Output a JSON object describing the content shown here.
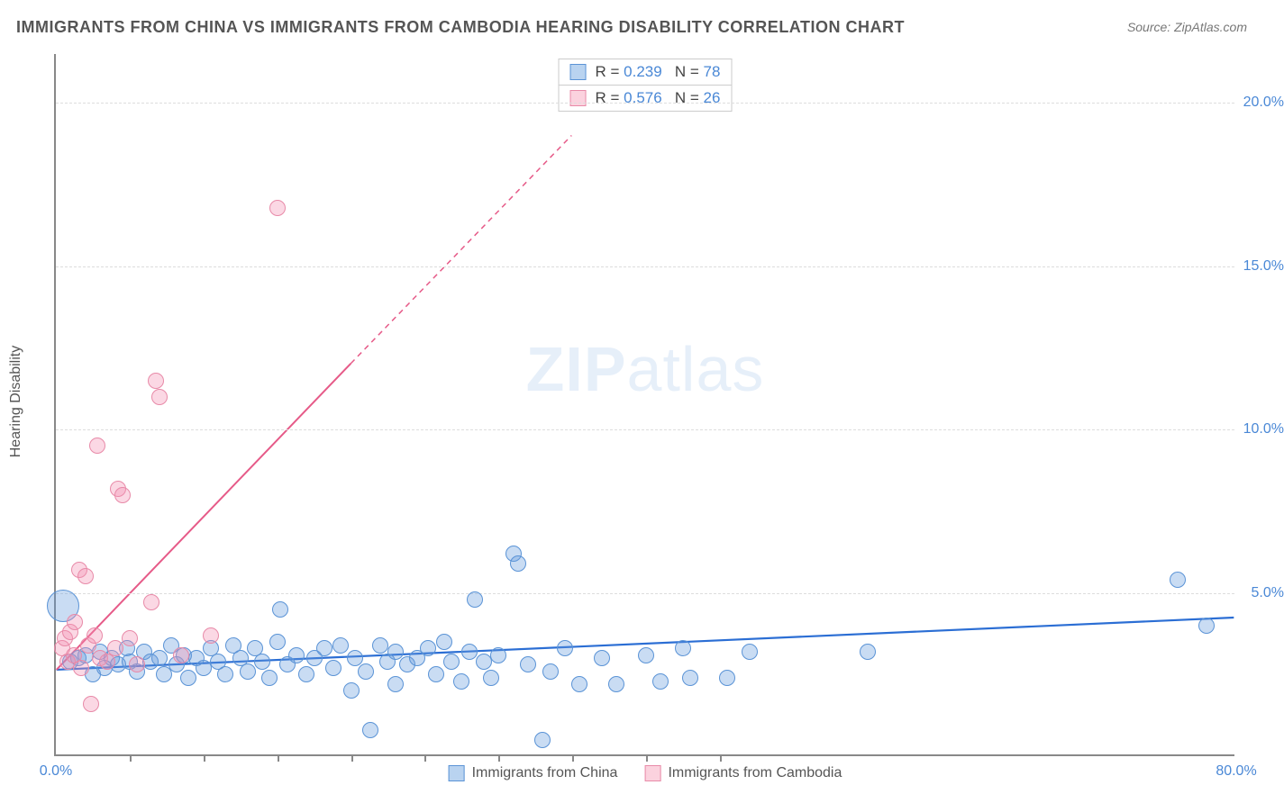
{
  "title": "IMMIGRANTS FROM CHINA VS IMMIGRANTS FROM CAMBODIA HEARING DISABILITY CORRELATION CHART",
  "source": "Source: ZipAtlas.com",
  "ylabel": "Hearing Disability",
  "watermark": {
    "bold": "ZIP",
    "rest": "atlas"
  },
  "chart": {
    "type": "scatter",
    "xlim": [
      0,
      80
    ],
    "ylim": [
      0,
      21.5
    ],
    "background_color": "#ffffff",
    "grid_color": "#dddddd",
    "axis_color": "#888888",
    "label_color": "#4a88d6",
    "yticks": [
      {
        "v": 5.0,
        "label": "5.0%"
      },
      {
        "v": 10.0,
        "label": "10.0%"
      },
      {
        "v": 15.0,
        "label": "15.0%"
      },
      {
        "v": 20.0,
        "label": "20.0%"
      }
    ],
    "xticks_minor": [
      5,
      10,
      15,
      20,
      25,
      30,
      35,
      40,
      45
    ],
    "xticks": [
      {
        "v": 0,
        "label": "0.0%"
      },
      {
        "v": 80,
        "label": "80.0%"
      }
    ],
    "series": [
      {
        "name": "Immigrants from China",
        "color_fill": "rgba(99,156,222,0.35)",
        "color_stroke": "#5a93d6",
        "color_swatch_fill": "#b9d3f0",
        "marker_radius": 9,
        "stats": {
          "R": "0.239",
          "N": "78"
        },
        "trend": {
          "x1": 0,
          "y1": 2.6,
          "x2": 80,
          "y2": 4.2,
          "color": "#2b6ed4",
          "width": 2.2,
          "dash": ""
        },
        "points": [
          {
            "x": 0.5,
            "y": 4.6,
            "r": 18
          },
          {
            "x": 1.0,
            "y": 2.9
          },
          {
            "x": 1.5,
            "y": 3.0
          },
          {
            "x": 2.0,
            "y": 3.1
          },
          {
            "x": 2.5,
            "y": 2.5
          },
          {
            "x": 3.0,
            "y": 3.2
          },
          {
            "x": 3.3,
            "y": 2.7
          },
          {
            "x": 3.8,
            "y": 3.0
          },
          {
            "x": 4.2,
            "y": 2.8
          },
          {
            "x": 4.8,
            "y": 3.3
          },
          {
            "x": 5.0,
            "y": 2.9
          },
          {
            "x": 5.5,
            "y": 2.6
          },
          {
            "x": 6.0,
            "y": 3.2
          },
          {
            "x": 6.4,
            "y": 2.9
          },
          {
            "x": 7.0,
            "y": 3.0
          },
          {
            "x": 7.3,
            "y": 2.5
          },
          {
            "x": 7.8,
            "y": 3.4
          },
          {
            "x": 8.2,
            "y": 2.8
          },
          {
            "x": 8.7,
            "y": 3.1
          },
          {
            "x": 9.0,
            "y": 2.4
          },
          {
            "x": 9.5,
            "y": 3.0
          },
          {
            "x": 10.0,
            "y": 2.7
          },
          {
            "x": 10.5,
            "y": 3.3
          },
          {
            "x": 11.0,
            "y": 2.9
          },
          {
            "x": 11.5,
            "y": 2.5
          },
          {
            "x": 12.0,
            "y": 3.4
          },
          {
            "x": 12.5,
            "y": 3.0
          },
          {
            "x": 13.0,
            "y": 2.6
          },
          {
            "x": 13.5,
            "y": 3.3
          },
          {
            "x": 14.0,
            "y": 2.9
          },
          {
            "x": 14.5,
            "y": 2.4
          },
          {
            "x": 15.0,
            "y": 3.5
          },
          {
            "x": 15.2,
            "y": 4.5
          },
          {
            "x": 15.7,
            "y": 2.8
          },
          {
            "x": 16.3,
            "y": 3.1
          },
          {
            "x": 17.0,
            "y": 2.5
          },
          {
            "x": 17.5,
            "y": 3.0
          },
          {
            "x": 18.2,
            "y": 3.3
          },
          {
            "x": 18.8,
            "y": 2.7
          },
          {
            "x": 19.3,
            "y": 3.4
          },
          {
            "x": 20.0,
            "y": 2.0
          },
          {
            "x": 20.3,
            "y": 3.0
          },
          {
            "x": 21.0,
            "y": 2.6
          },
          {
            "x": 21.3,
            "y": 0.8
          },
          {
            "x": 22.0,
            "y": 3.4
          },
          {
            "x": 22.5,
            "y": 2.9
          },
          {
            "x": 23.0,
            "y": 2.2
          },
          {
            "x": 23.0,
            "y": 3.2
          },
          {
            "x": 23.8,
            "y": 2.8
          },
          {
            "x": 24.5,
            "y": 3.0
          },
          {
            "x": 25.2,
            "y": 3.3
          },
          {
            "x": 25.8,
            "y": 2.5
          },
          {
            "x": 26.3,
            "y": 3.5
          },
          {
            "x": 26.8,
            "y": 2.9
          },
          {
            "x": 27.5,
            "y": 2.3
          },
          {
            "x": 28.0,
            "y": 3.2
          },
          {
            "x": 28.4,
            "y": 4.8
          },
          {
            "x": 29.0,
            "y": 2.9
          },
          {
            "x": 29.5,
            "y": 2.4
          },
          {
            "x": 30.0,
            "y": 3.1
          },
          {
            "x": 31.0,
            "y": 6.2
          },
          {
            "x": 31.3,
            "y": 5.9
          },
          {
            "x": 32.0,
            "y": 2.8
          },
          {
            "x": 33.0,
            "y": 0.5
          },
          {
            "x": 33.5,
            "y": 2.6
          },
          {
            "x": 34.5,
            "y": 3.3
          },
          {
            "x": 35.5,
            "y": 2.2
          },
          {
            "x": 37.0,
            "y": 3.0
          },
          {
            "x": 38.0,
            "y": 2.2
          },
          {
            "x": 40.0,
            "y": 3.1
          },
          {
            "x": 41.0,
            "y": 2.3
          },
          {
            "x": 42.5,
            "y": 3.3
          },
          {
            "x": 43.0,
            "y": 2.4
          },
          {
            "x": 45.5,
            "y": 2.4
          },
          {
            "x": 47.0,
            "y": 3.2
          },
          {
            "x": 55.0,
            "y": 3.2
          },
          {
            "x": 76.0,
            "y": 5.4
          },
          {
            "x": 78.0,
            "y": 4.0
          }
        ]
      },
      {
        "name": "Immigrants from Cambodia",
        "color_fill": "rgba(244,143,177,0.35)",
        "color_stroke": "#e88aa8",
        "color_swatch_fill": "#fbd2de",
        "marker_radius": 9,
        "stats": {
          "R": "0.576",
          "N": "26"
        },
        "trend_solid": {
          "x1": 0,
          "y1": 2.6,
          "x2": 20,
          "y2": 12.0,
          "color": "#e65a88",
          "width": 2,
          "dash": ""
        },
        "trend_dash": {
          "x1": 20,
          "y1": 12.0,
          "x2": 35,
          "y2": 19.0,
          "color": "#e65a88",
          "width": 1.5,
          "dash": "6,5"
        },
        "points": [
          {
            "x": 0.4,
            "y": 3.3
          },
          {
            "x": 0.6,
            "y": 3.6
          },
          {
            "x": 0.8,
            "y": 2.9
          },
          {
            "x": 1.0,
            "y": 3.8
          },
          {
            "x": 1.2,
            "y": 3.1
          },
          {
            "x": 1.3,
            "y": 4.1
          },
          {
            "x": 1.6,
            "y": 5.7
          },
          {
            "x": 1.7,
            "y": 2.7
          },
          {
            "x": 2.0,
            "y": 5.5
          },
          {
            "x": 2.2,
            "y": 3.4
          },
          {
            "x": 2.4,
            "y": 1.6
          },
          {
            "x": 2.6,
            "y": 3.7
          },
          {
            "x": 2.8,
            "y": 9.5
          },
          {
            "x": 3.0,
            "y": 3.0
          },
          {
            "x": 3.5,
            "y": 2.9
          },
          {
            "x": 4.0,
            "y": 3.3
          },
          {
            "x": 4.2,
            "y": 8.2
          },
          {
            "x": 4.5,
            "y": 8.0
          },
          {
            "x": 5.0,
            "y": 3.6
          },
          {
            "x": 5.5,
            "y": 2.8
          },
          {
            "x": 6.5,
            "y": 4.7
          },
          {
            "x": 6.8,
            "y": 11.5
          },
          {
            "x": 7.0,
            "y": 11.0
          },
          {
            "x": 8.5,
            "y": 3.1
          },
          {
            "x": 10.5,
            "y": 3.7
          },
          {
            "x": 15.0,
            "y": 16.8
          }
        ]
      }
    ]
  },
  "legend_bottom": {
    "series1": "Immigrants from China",
    "series2": "Immigrants from Cambodia"
  }
}
